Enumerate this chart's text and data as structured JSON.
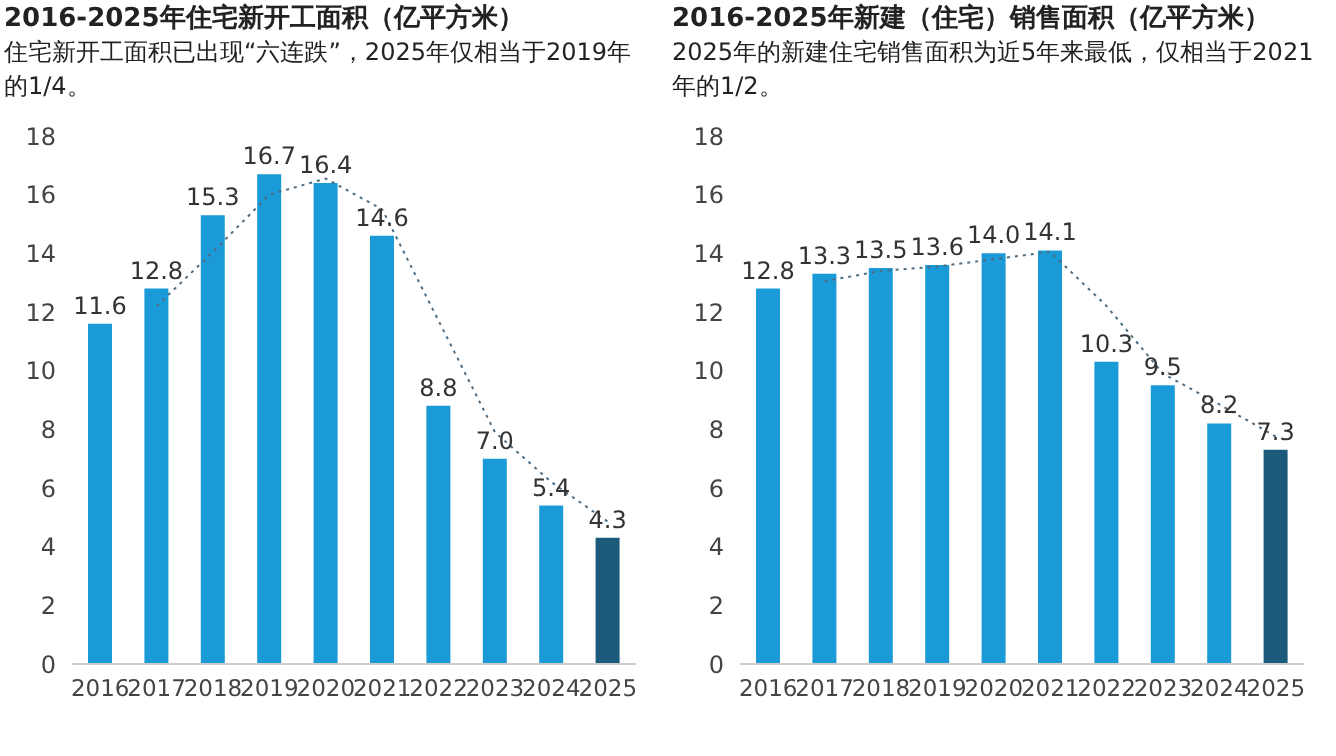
{
  "chart_data": [
    {
      "type": "bar",
      "title": "2016-2025年住宅新开工面积（亿平方米）",
      "subtitle": "住宅新开工面积已出现“六连跌”，2025年仅相当于2019年的1/4。",
      "categories": [
        "2016",
        "2017",
        "2018",
        "2019",
        "2020",
        "2021",
        "2022",
        "2023",
        "2024",
        "2025"
      ],
      "ylim": [
        0,
        18
      ],
      "yticks": [
        0,
        2,
        4,
        6,
        8,
        10,
        12,
        14,
        16,
        18
      ],
      "series": [
        {
          "color": "#1a9bd7",
          "colors": [
            "#1a9bd7",
            "#1a9bd7",
            "#1a9bd7",
            "#1a9bd7",
            "#1a9bd7",
            "#1a9bd7",
            "#1a9bd7",
            "#1a9bd7",
            "#1a9bd7",
            "#1b5a7a"
          ],
          "values": [
            11.6,
            12.8,
            15.3,
            16.7,
            16.4,
            14.6,
            8.8,
            7.0,
            5.4,
            4.3
          ],
          "value_labels": [
            "11.6",
            "12.8",
            "15.3",
            "16.7",
            "16.4",
            "14.6",
            "8.8",
            "7.0",
            "5.4",
            "4.3"
          ]
        },
        {
          "type": "line",
          "color": "#4f6b80",
          "line_style": "dotted",
          "marker": "none",
          "values": [
            null,
            12.2,
            14.05,
            16.0,
            16.55,
            15.5,
            11.7,
            7.9,
            6.2,
            4.85
          ]
        }
      ]
    },
    {
      "type": "bar",
      "title": "2016-2025年新建（住宅）销售面积（亿平方米）",
      "subtitle": "2025年的新建住宅销售面积为近5年来最低，仅相当于2021年的1/2。",
      "categories": [
        "2016",
        "2017",
        "2018",
        "2019",
        "2020",
        "2021",
        "2022",
        "2023",
        "2024",
        "2025"
      ],
      "ylim": [
        0,
        18
      ],
      "yticks": [
        0,
        2,
        4,
        6,
        8,
        10,
        12,
        14,
        16,
        18
      ],
      "series": [
        {
          "color": "#1a9bd7",
          "colors": [
            "#1a9bd7",
            "#1a9bd7",
            "#1a9bd7",
            "#1a9bd7",
            "#1a9bd7",
            "#1a9bd7",
            "#1a9bd7",
            "#1a9bd7",
            "#1a9bd7",
            "#1b5a7a"
          ],
          "values": [
            12.8,
            13.3,
            13.5,
            13.6,
            14.0,
            14.1,
            10.3,
            9.5,
            8.2,
            7.3
          ],
          "value_labels": [
            "12.8",
            "13.3",
            "13.5",
            "13.6",
            "14.0",
            "14.1",
            "10.3",
            "9.5",
            "8.2",
            "7.3"
          ]
        },
        {
          "type": "line",
          "color": "#4f6b80",
          "line_style": "dotted",
          "marker": "none",
          "values": [
            null,
            13.05,
            13.4,
            13.55,
            13.8,
            14.05,
            12.2,
            9.9,
            8.85,
            7.75
          ]
        }
      ]
    }
  ]
}
